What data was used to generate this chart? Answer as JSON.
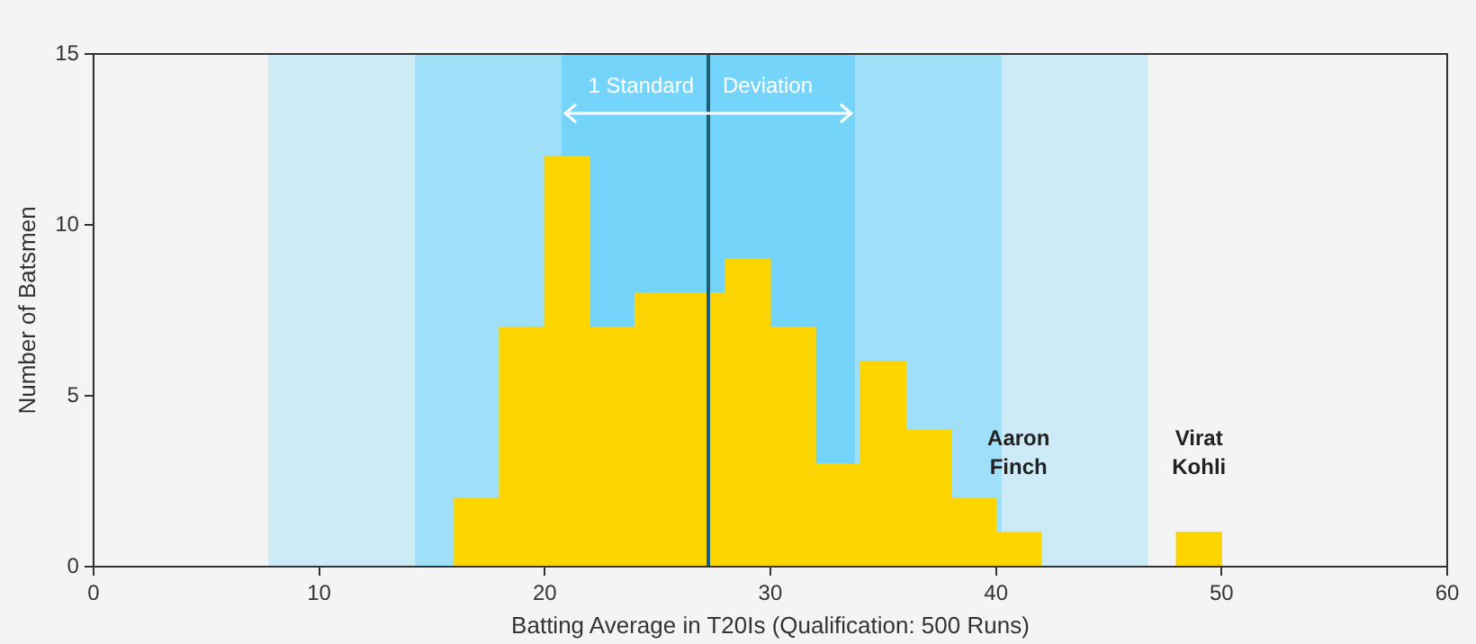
{
  "chart_data": {
    "type": "histogram",
    "xlabel": "Batting Average in T20Is (Qualification: 500 Runs)",
    "ylabel": "Number of Batsmen",
    "bins": [
      16,
      18,
      20,
      22,
      24,
      26,
      28,
      30,
      32,
      34,
      36,
      38,
      40,
      42,
      44,
      46,
      48,
      50
    ],
    "values": [
      2,
      7,
      12,
      7,
      8,
      8,
      9,
      7,
      3,
      6,
      4,
      2,
      1,
      0,
      0,
      0,
      1
    ],
    "color": "#fcd500",
    "xlim": [
      0,
      60
    ],
    "xticks": [
      0,
      10,
      20,
      30,
      40,
      50,
      60
    ],
    "ylim": [
      0,
      15
    ],
    "yticks": [
      0,
      5,
      10,
      15
    ],
    "grid": false,
    "legend": false,
    "bands": [
      {
        "axis": "x",
        "from": 7.75,
        "to": 46.75,
        "color": "#cdebf7"
      },
      {
        "axis": "x",
        "from": 14.25,
        "to": 40.25,
        "color": "#9fdff8"
      },
      {
        "axis": "x",
        "from": 20.75,
        "to": 33.75,
        "color": "#74d4fa",
        "label": "1 Standard Deviation"
      }
    ],
    "ref_lines": [
      {
        "axis": "x",
        "value": 27.25,
        "color": "#1b5e78"
      }
    ],
    "annotations": [
      {
        "text": "Aaron Finch",
        "x": 41,
        "y": 1
      },
      {
        "text": "Virat Kohli",
        "x": 49,
        "y": 1
      }
    ]
  }
}
